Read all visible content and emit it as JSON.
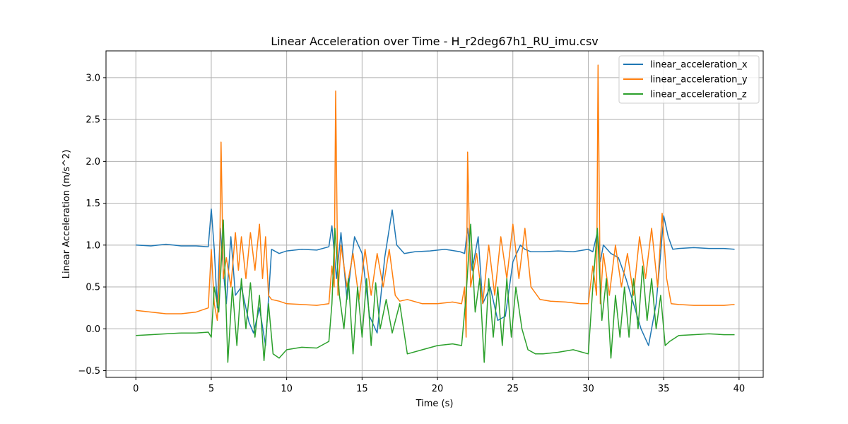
{
  "chart_data": {
    "type": "line",
    "title": "Linear Acceleration over Time - H_r2deg67h1_RU_imu.csv",
    "xlabel": "Time (s)",
    "ylabel": "Linear Acceleration (m/s^2)",
    "xlim": [
      -1.98,
      41.6
    ],
    "ylim": [
      -0.58,
      3.32
    ],
    "xticks": [
      0,
      5,
      10,
      15,
      20,
      25,
      30,
      35,
      40
    ],
    "xtick_labels": [
      "0",
      "5",
      "10",
      "15",
      "20",
      "25",
      "30",
      "35",
      "40"
    ],
    "yticks": [
      -0.5,
      0.0,
      0.5,
      1.0,
      1.5,
      2.0,
      2.5,
      3.0
    ],
    "ytick_labels": [
      "−0.5",
      "0.0",
      "0.5",
      "1.0",
      "1.5",
      "2.0",
      "2.5",
      "3.0"
    ],
    "grid": true,
    "legend_position": "top-right",
    "series": [
      {
        "name": "linear_acceleration_x",
        "color": "#1f77b4",
        "x": [
          0,
          1,
          2,
          3,
          4,
          4.8,
          5.0,
          5.2,
          5.4,
          5.6,
          5.8,
          6.0,
          6.3,
          6.6,
          7.0,
          7.5,
          7.8,
          8.2,
          8.6,
          9.0,
          9.5,
          10,
          11,
          12,
          12.8,
          13.0,
          13.3,
          13.6,
          14.0,
          14.5,
          15.0,
          15.5,
          16.0,
          16.5,
          17.0,
          17.3,
          17.8,
          18.5,
          19.5,
          20.5,
          21.5,
          21.8,
          22.0,
          22.3,
          22.7,
          23.0,
          23.5,
          24.0,
          24.5,
          25.0,
          25.5,
          25.8,
          26.2,
          27,
          28,
          29,
          30,
          30.3,
          30.6,
          30.8,
          31.0,
          31.5,
          32.0,
          32.5,
          33.0,
          33.5,
          34.0,
          34.5,
          34.8,
          35.0,
          35.3,
          35.6,
          36,
          37,
          38,
          39,
          39.7
        ],
        "y": [
          1.0,
          0.99,
          1.01,
          0.99,
          0.99,
          0.98,
          1.43,
          0.95,
          0.25,
          1.2,
          0.7,
          0.3,
          1.1,
          0.4,
          0.5,
          0.08,
          -0.05,
          0.25,
          -0.2,
          0.95,
          0.9,
          0.93,
          0.95,
          0.94,
          0.98,
          1.23,
          0.6,
          1.15,
          0.35,
          1.1,
          0.9,
          0.15,
          -0.05,
          0.85,
          1.42,
          1.0,
          0.9,
          0.92,
          0.93,
          0.95,
          0.92,
          0.9,
          1.2,
          0.7,
          1.1,
          0.3,
          0.5,
          0.1,
          0.15,
          0.8,
          1.0,
          0.95,
          0.92,
          0.92,
          0.93,
          0.92,
          0.95,
          0.92,
          1.15,
          0.8,
          1.0,
          0.9,
          0.85,
          0.6,
          0.3,
          0.0,
          -0.2,
          0.3,
          0.9,
          1.35,
          1.1,
          0.95,
          0.96,
          0.97,
          0.96,
          0.96,
          0.95
        ]
      },
      {
        "name": "linear_acceleration_y",
        "color": "#ff7f0e",
        "x": [
          0,
          1,
          2,
          3,
          4,
          4.8,
          5.0,
          5.2,
          5.4,
          5.55,
          5.65,
          5.8,
          6.0,
          6.3,
          6.6,
          6.8,
          7.0,
          7.3,
          7.6,
          7.9,
          8.2,
          8.4,
          8.6,
          8.8,
          9.0,
          9.5,
          10,
          11,
          12,
          12.8,
          13.0,
          13.15,
          13.25,
          13.4,
          13.6,
          14.0,
          14.4,
          14.8,
          15.2,
          15.6,
          16.0,
          16.4,
          16.8,
          17.2,
          17.5,
          18.0,
          19,
          20,
          21,
          21.6,
          21.8,
          21.9,
          22.0,
          22.2,
          22.6,
          23.0,
          23.4,
          23.8,
          24.2,
          24.6,
          25.0,
          25.4,
          25.8,
          26.2,
          26.8,
          27.5,
          28.5,
          29.5,
          30.0,
          30.3,
          30.55,
          30.65,
          30.8,
          31.0,
          31.4,
          31.8,
          32.2,
          32.6,
          33.0,
          33.4,
          33.8,
          34.2,
          34.6,
          34.9,
          35.2,
          35.5,
          36,
          37,
          38,
          39,
          39.7
        ],
        "y": [
          0.22,
          0.2,
          0.18,
          0.18,
          0.2,
          0.25,
          0.95,
          0.3,
          0.1,
          0.7,
          2.23,
          0.6,
          0.85,
          0.5,
          1.15,
          0.7,
          1.1,
          0.6,
          1.15,
          0.7,
          1.25,
          0.6,
          1.1,
          0.4,
          0.35,
          0.33,
          0.3,
          0.29,
          0.28,
          0.3,
          0.75,
          0.5,
          2.84,
          0.4,
          1.0,
          0.5,
          0.9,
          0.35,
          0.95,
          0.4,
          0.9,
          0.5,
          0.95,
          0.4,
          0.33,
          0.35,
          0.3,
          0.3,
          0.32,
          0.3,
          0.5,
          -0.1,
          2.11,
          0.5,
          0.9,
          0.3,
          1.0,
          0.4,
          1.1,
          0.6,
          1.25,
          0.6,
          1.2,
          0.5,
          0.35,
          0.33,
          0.32,
          0.3,
          0.3,
          0.75,
          0.4,
          3.15,
          0.3,
          0.9,
          0.4,
          1.0,
          0.5,
          0.9,
          0.4,
          1.1,
          0.6,
          1.2,
          0.5,
          1.38,
          0.6,
          0.3,
          0.29,
          0.28,
          0.28,
          0.28,
          0.29
        ]
      },
      {
        "name": "linear_acceleration_z",
        "color": "#2ca02c",
        "x": [
          0,
          1,
          2,
          3,
          4,
          4.8,
          5.0,
          5.2,
          5.5,
          5.8,
          6.1,
          6.4,
          6.7,
          7.0,
          7.3,
          7.6,
          7.9,
          8.2,
          8.5,
          8.8,
          9.1,
          9.5,
          10,
          11,
          12,
          12.8,
          13.0,
          13.2,
          13.5,
          13.8,
          14.1,
          14.4,
          14.7,
          15.0,
          15.3,
          15.6,
          15.9,
          16.2,
          16.6,
          17.0,
          17.5,
          18.0,
          19,
          20,
          21,
          21.6,
          21.9,
          22.2,
          22.5,
          22.8,
          23.1,
          23.4,
          23.7,
          24.0,
          24.3,
          24.6,
          24.9,
          25.2,
          25.6,
          26.0,
          26.5,
          27,
          28,
          29,
          30,
          30.3,
          30.6,
          30.9,
          31.2,
          31.5,
          31.8,
          32.1,
          32.4,
          32.7,
          33.0,
          33.3,
          33.6,
          33.9,
          34.2,
          34.5,
          34.8,
          35.1,
          35.4,
          36,
          37,
          38,
          39,
          39.7
        ],
        "y": [
          -0.08,
          -0.07,
          -0.06,
          -0.05,
          -0.05,
          -0.04,
          -0.1,
          0.5,
          0.2,
          1.3,
          -0.4,
          0.5,
          -0.2,
          0.6,
          0.0,
          0.55,
          -0.1,
          0.4,
          -0.38,
          0.3,
          -0.3,
          -0.35,
          -0.25,
          -0.22,
          -0.23,
          -0.15,
          0.3,
          1.2,
          0.4,
          0.0,
          0.6,
          -0.3,
          0.5,
          -0.1,
          0.6,
          -0.2,
          0.55,
          0.0,
          0.35,
          -0.05,
          0.3,
          -0.3,
          -0.25,
          -0.2,
          -0.18,
          -0.2,
          0.4,
          1.25,
          0.2,
          0.6,
          -0.4,
          0.6,
          -0.1,
          0.5,
          -0.2,
          0.6,
          -0.1,
          0.5,
          0.0,
          -0.25,
          -0.3,
          -0.3,
          -0.28,
          -0.25,
          -0.3,
          0.5,
          1.2,
          0.1,
          0.6,
          -0.35,
          0.4,
          -0.1,
          0.5,
          -0.1,
          0.6,
          0.0,
          0.75,
          0.1,
          0.6,
          0.0,
          0.4,
          -0.2,
          -0.15,
          -0.08,
          -0.07,
          -0.06,
          -0.07,
          -0.07
        ]
      }
    ]
  }
}
